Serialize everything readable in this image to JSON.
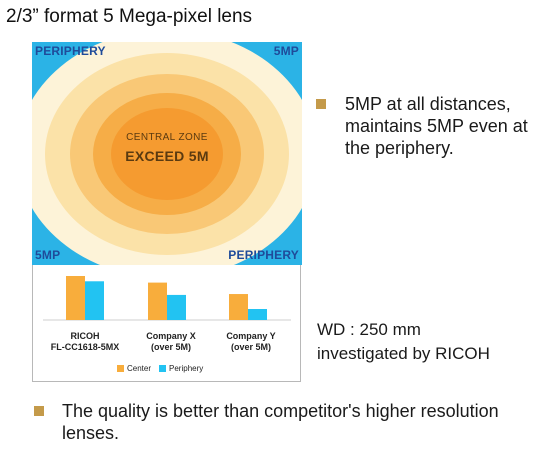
{
  "title": "2/3” format   5 Mega-pixel lens",
  "zone_diagram": {
    "corner_top_left": "PERIPHERY",
    "corner_top_right": "5MP",
    "corner_bottom_left": "5MP",
    "corner_bottom_right": "PERIPHERY",
    "center_small": "CENTRAL ZONE",
    "center_big": "EXCEED 5M",
    "colors": {
      "background": "#2bb3e6",
      "rings": [
        "#fdf3d8",
        "#fbe2a8",
        "#f9c876",
        "#f6ad47",
        "#f59b30"
      ],
      "label": "#1f4b9a"
    }
  },
  "chart_data": {
    "type": "bar",
    "categories": [
      [
        "RICOH",
        "FL-CC1618-5MX"
      ],
      [
        "Company X",
        "(over 5M)"
      ],
      [
        "Company Y",
        "(over 5M)"
      ]
    ],
    "series": [
      {
        "name": "Center",
        "color": "#f8ad3c",
        "values": [
          100,
          85,
          59
        ]
      },
      {
        "name": "Periphery",
        "color": "#22c3f2",
        "values": [
          88,
          57,
          25
        ]
      }
    ],
    "ylim": [
      0,
      100
    ],
    "legend_position": "bottom"
  },
  "bullets": {
    "b1": "5MP at all distances, maintains 5MP even at the periphery.",
    "b3": "The quality is better than competitor's higher resolution lenses."
  },
  "note": {
    "line1": "WD : 250 mm",
    "line2": "investigated by RICOH"
  },
  "bullet_color": "#c49a4a"
}
